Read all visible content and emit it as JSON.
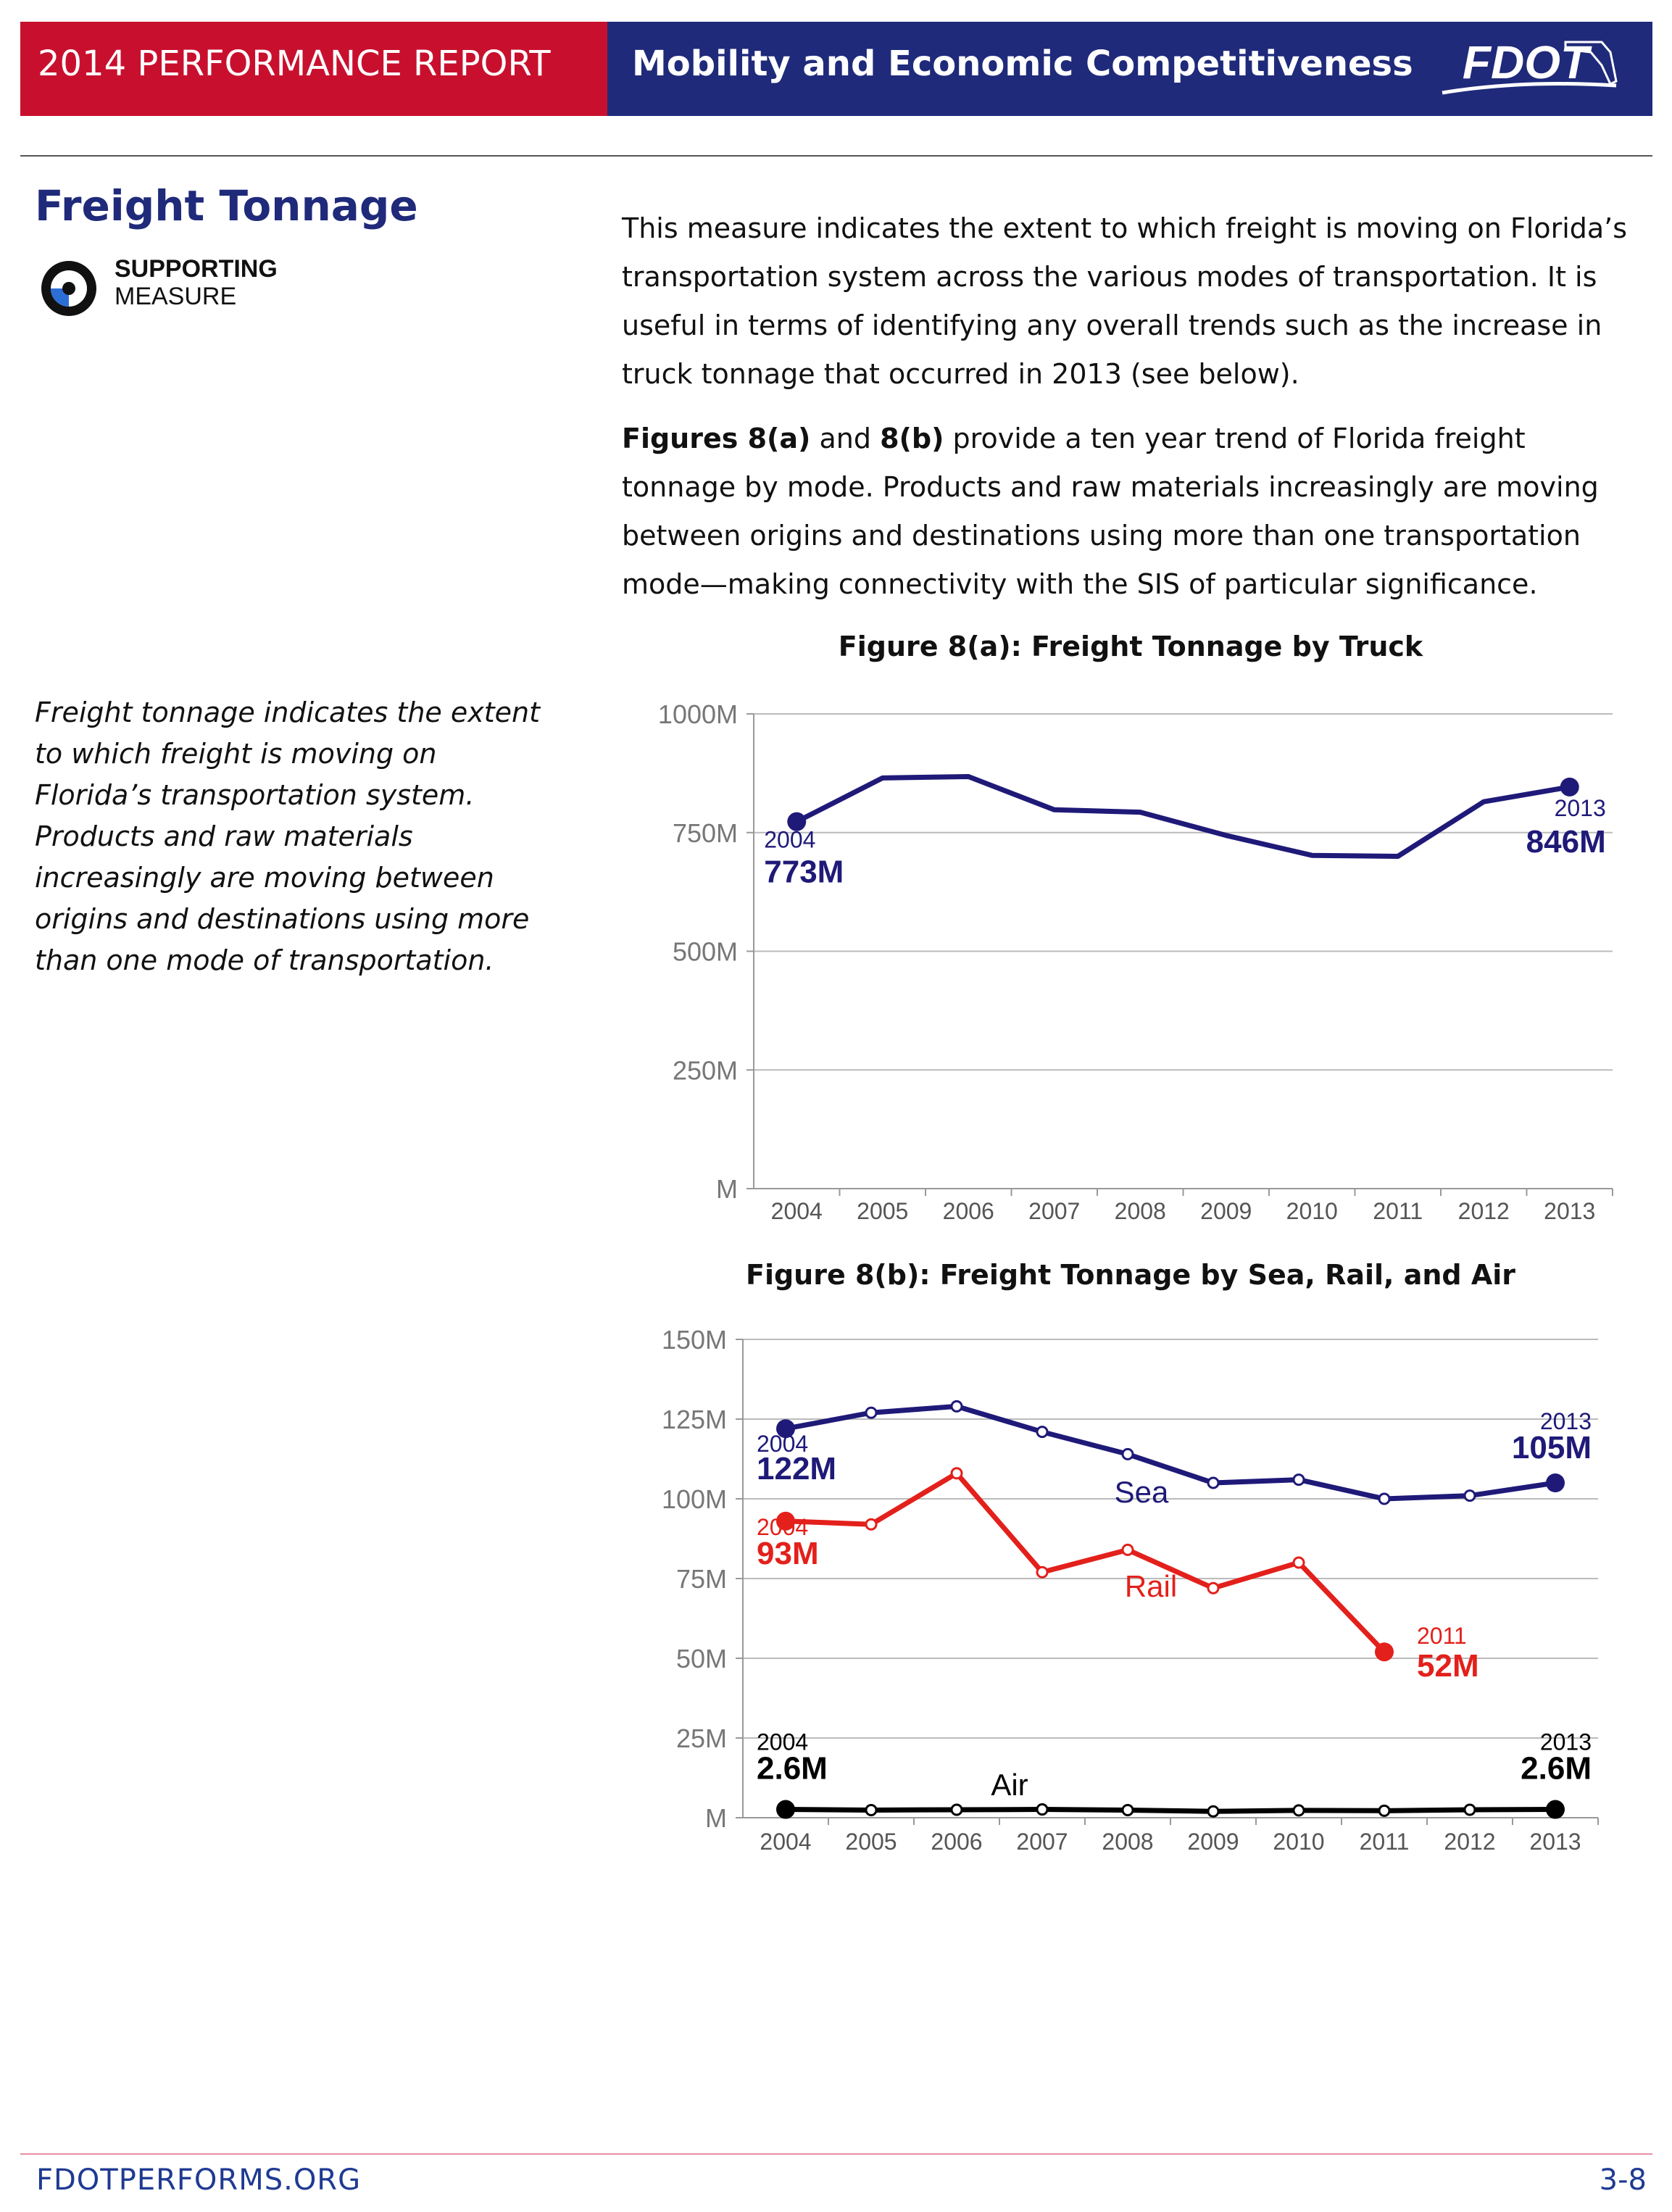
{
  "header": {
    "report": "2014 PERFORMANCE REPORT",
    "section": "Mobility and Economic Competitiveness",
    "logo": "FDOT"
  },
  "measure": {
    "title": "Freight Tonnage",
    "badge_top": "SUPPORTING",
    "badge_bottom": "MEASURE"
  },
  "body": {
    "paragraphs": [
      [
        {
          "text": "This measure indicates the extent to which freight is moving on Florida’s transportation system across the various modes of transportation.  It is useful in terms of identifying any overall trends such as the increase in truck tonnage that occurred in 2013 (see below)."
        }
      ],
      [
        {
          "text": "Figures 8(a)",
          "bold": true
        },
        {
          "text": " and "
        },
        {
          "text": "8(b)",
          "bold": true
        },
        {
          "text": " provide a ten year trend of Florida freight tonnage by mode.  Products and raw materials increasingly are moving between origins and destinations using more than one transportation mode—making connectivity with the SIS of particular significance."
        }
      ]
    ]
  },
  "callout": "Freight tonnage indicates the extent to which freight is moving on Florida’s transportation system. Products and raw materials increasingly are moving between origins and destinations using more than one mode of transportation.",
  "chart_data": [
    {
      "type": "line",
      "title": "Figure 8(a): Freight Tonnage by Truck",
      "categories": [
        "2004",
        "2005",
        "2006",
        "2007",
        "2008",
        "2009",
        "2010",
        "2011",
        "2012",
        "2013"
      ],
      "ylim": [
        0,
        1000
      ],
      "yticks": [
        {
          "value": 0,
          "label": "M"
        },
        {
          "value": 250,
          "label": "250M"
        },
        {
          "value": 500,
          "label": "500M"
        },
        {
          "value": 750,
          "label": "750M"
        },
        {
          "value": 1000,
          "label": "1000M"
        }
      ],
      "grid": true,
      "markers": false,
      "series": [
        {
          "color": "#1f1a78",
          "values": [
            773,
            865,
            868,
            798,
            793,
            744,
            702,
            700,
            815,
            846
          ],
          "value_labels": [
            "773M",
            null,
            null,
            null,
            null,
            null,
            null,
            null,
            null,
            "846M"
          ]
        }
      ]
    },
    {
      "type": "line",
      "title": "Figure 8(b): Freight Tonnage by Sea, Rail, and Air",
      "categories": [
        "2004",
        "2005",
        "2006",
        "2007",
        "2008",
        "2009",
        "2010",
        "2011",
        "2012",
        "2013"
      ],
      "ylim": [
        0,
        150
      ],
      "yticks": [
        {
          "value": 0,
          "label": "M"
        },
        {
          "value": 25,
          "label": "25M"
        },
        {
          "value": 50,
          "label": "50M"
        },
        {
          "value": 75,
          "label": "75M"
        },
        {
          "value": 100,
          "label": "100M"
        },
        {
          "value": 125,
          "label": "125M"
        },
        {
          "value": 150,
          "label": "150M"
        }
      ],
      "grid": true,
      "markers": true,
      "series": [
        {
          "name": "Sea",
          "color": "#1f1a78",
          "values": [
            122,
            127,
            129,
            121,
            114,
            105,
            106,
            100,
            101,
            105
          ],
          "value_labels": [
            "122M",
            null,
            null,
            null,
            null,
            null,
            null,
            null,
            null,
            "105M"
          ]
        },
        {
          "name": "Rail",
          "color": "#e3201b",
          "values": [
            93,
            92,
            108,
            77,
            84,
            72,
            80,
            52,
            null,
            null
          ],
          "value_labels": [
            "93M",
            null,
            null,
            null,
            null,
            null,
            null,
            "52M",
            null,
            null
          ]
        },
        {
          "name": "Air",
          "color": "#000000",
          "values": [
            2.6,
            2.4,
            2.5,
            2.6,
            2.4,
            2.0,
            2.3,
            2.2,
            2.5,
            2.6
          ],
          "value_labels": [
            "2.6M",
            null,
            null,
            null,
            null,
            null,
            null,
            null,
            null,
            "2.6M"
          ]
        }
      ]
    }
  ],
  "footer": {
    "site": "FDOTPERFORMS.ORG",
    "page": "3-8"
  }
}
